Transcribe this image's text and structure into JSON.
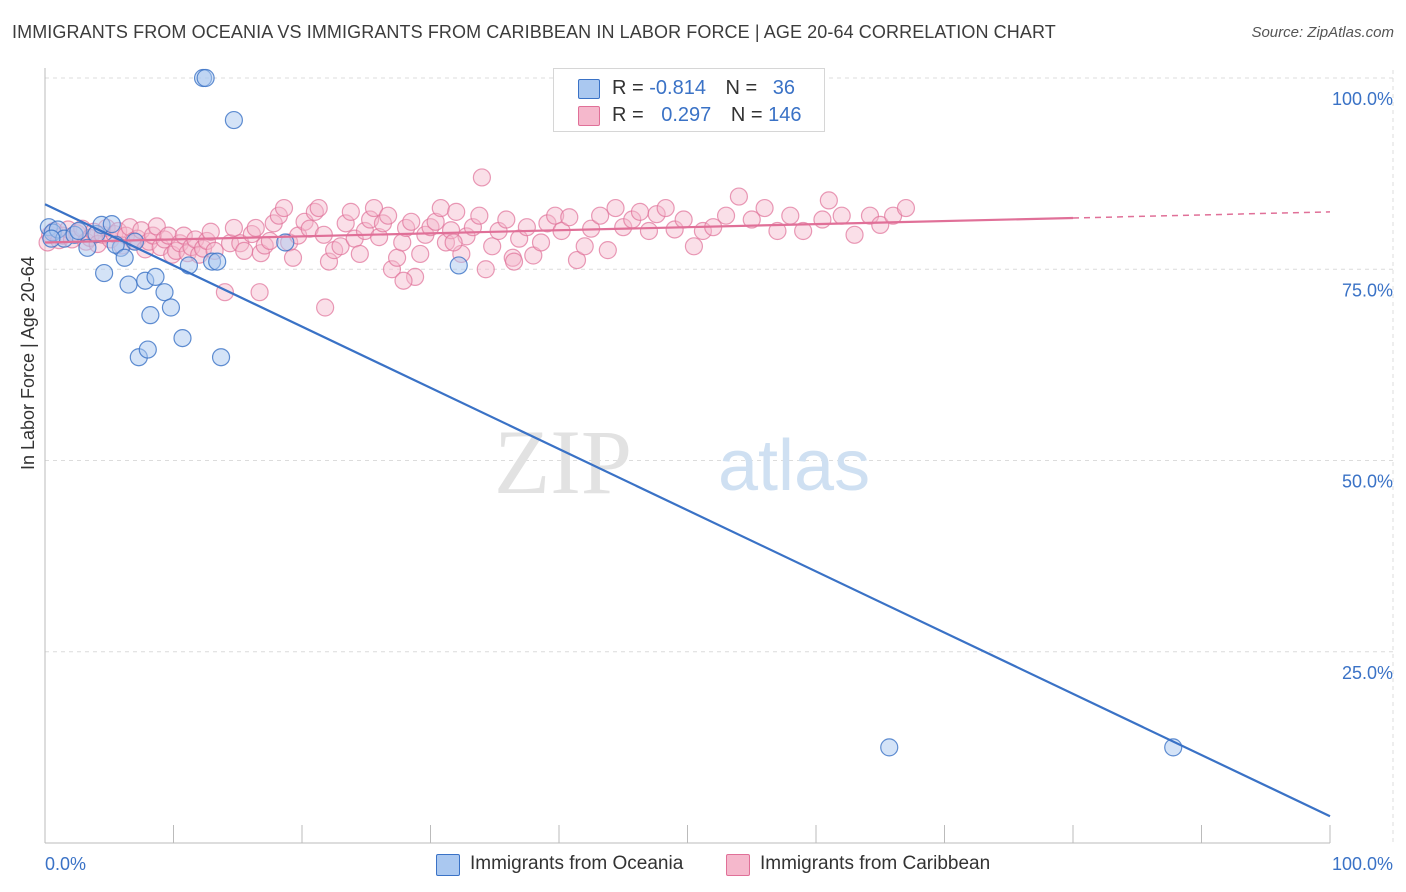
{
  "title": "IMMIGRANTS FROM OCEANIA VS IMMIGRANTS FROM CARIBBEAN IN LABOR FORCE | AGE 20-64 CORRELATION CHART",
  "source": "Source: ZipAtlas.com",
  "watermark": {
    "zip": "ZIP",
    "atlas": "atlas"
  },
  "colors": {
    "blue": "#3a72c6",
    "blue_fill": "#aac8f0",
    "pink": "#e07098",
    "pink_fill": "#f5b8cc",
    "grid": "#dcdcdc",
    "tick_label": "#3a72c6"
  },
  "legend": {
    "rows": [
      {
        "r_label": "R =",
        "r_value": "-0.814",
        "n_label": "N =",
        "n_value": "36"
      },
      {
        "r_label": "R =",
        "r_value": "0.297",
        "n_label": "N =",
        "n_value": "146"
      }
    ]
  },
  "bottom_legend": {
    "oceania": "Immigrants from Oceania",
    "caribbean": "Immigrants from Caribbean"
  },
  "chart_data": {
    "type": "scatter",
    "title": "IMMIGRANTS FROM OCEANIA VS IMMIGRANTS FROM CARIBBEAN IN LABOR FORCE | AGE 20-64 CORRELATION CHART",
    "xlabel": "",
    "ylabel": "In Labor Force | Age 20-64",
    "xlim": [
      0,
      100
    ],
    "ylim": [
      0,
      100
    ],
    "x_tick_labels": [
      "0.0%",
      "100.0%"
    ],
    "y_tick_labels": [
      "100.0%",
      "75.0%",
      "50.0%",
      "25.0%"
    ],
    "y_ticks": [
      100,
      75,
      50,
      25
    ],
    "grid": true,
    "series": [
      {
        "name": "Immigrants from Oceania",
        "color": "#3a72c6",
        "r": -0.814,
        "n": 36,
        "trend": {
          "x": [
            0,
            100
          ],
          "y": [
            83.5,
            3.5
          ]
        },
        "points": [
          [
            0.3,
            80.5
          ],
          [
            0.6,
            79.8
          ],
          [
            1.0,
            80.2
          ],
          [
            1.5,
            79.0
          ],
          [
            2.3,
            79.5
          ],
          [
            2.6,
            80.0
          ],
          [
            3.3,
            77.8
          ],
          [
            4.0,
            79.6
          ],
          [
            4.4,
            80.8
          ],
          [
            5.2,
            80.9
          ],
          [
            5.9,
            77.8
          ],
          [
            4.6,
            74.5
          ],
          [
            5.5,
            78.2
          ],
          [
            6.2,
            76.5
          ],
          [
            6.5,
            73.0
          ],
          [
            7.0,
            78.6
          ],
          [
            7.3,
            63.5
          ],
          [
            7.8,
            73.5
          ],
          [
            8.0,
            64.5
          ],
          [
            8.2,
            69.0
          ],
          [
            8.6,
            74.0
          ],
          [
            9.3,
            72.0
          ],
          [
            9.8,
            70.0
          ],
          [
            10.7,
            66.0
          ],
          [
            11.2,
            75.5
          ],
          [
            12.3,
            100.0
          ],
          [
            12.5,
            100.0
          ],
          [
            13.0,
            76.0
          ],
          [
            13.4,
            76.0
          ],
          [
            13.7,
            63.5
          ],
          [
            14.7,
            94.5
          ],
          [
            18.7,
            78.5
          ],
          [
            32.2,
            75.5
          ],
          [
            65.7,
            12.5
          ],
          [
            87.8,
            12.5
          ],
          [
            0.5,
            79.0
          ]
        ]
      },
      {
        "name": "Immigrants from Caribbean",
        "color": "#e07098",
        "r": 0.297,
        "n": 146,
        "trend": {
          "x": [
            0,
            80
          ],
          "y": [
            78.5,
            81.7
          ],
          "dashed_to": [
            100,
            82.5
          ]
        },
        "points": [
          [
            0.2,
            78.5
          ],
          [
            0.4,
            79.5
          ],
          [
            0.7,
            80.0
          ],
          [
            1.1,
            78.8
          ],
          [
            1.4,
            79.4
          ],
          [
            1.8,
            80.2
          ],
          [
            2.1,
            78.9
          ],
          [
            2.5,
            79.7
          ],
          [
            2.9,
            80.3
          ],
          [
            3.2,
            78.6
          ],
          [
            3.5,
            79.1
          ],
          [
            3.8,
            79.9
          ],
          [
            4.1,
            78.3
          ],
          [
            4.5,
            79.5
          ],
          [
            4.8,
            80.4
          ],
          [
            5.1,
            78.9
          ],
          [
            5.4,
            79.6
          ],
          [
            5.7,
            80.0
          ],
          [
            6.0,
            78.1
          ],
          [
            6.3,
            79.4
          ],
          [
            6.6,
            80.5
          ],
          [
            6.9,
            78.7
          ],
          [
            7.2,
            79.0
          ],
          [
            7.5,
            80.1
          ],
          [
            7.8,
            77.6
          ],
          [
            8.1,
            78.6
          ],
          [
            8.4,
            79.4
          ],
          [
            8.7,
            80.6
          ],
          [
            9.0,
            77.9
          ],
          [
            9.3,
            78.9
          ],
          [
            9.6,
            79.4
          ],
          [
            9.9,
            76.9
          ],
          [
            10.2,
            77.4
          ],
          [
            10.5,
            78.4
          ],
          [
            10.8,
            79.4
          ],
          [
            11.1,
            77.1
          ],
          [
            11.4,
            77.9
          ],
          [
            11.7,
            78.9
          ],
          [
            12.0,
            76.9
          ],
          [
            12.3,
            77.7
          ],
          [
            12.6,
            78.7
          ],
          [
            12.9,
            79.9
          ],
          [
            13.2,
            77.4
          ],
          [
            14.0,
            72.0
          ],
          [
            14.4,
            78.4
          ],
          [
            14.7,
            80.4
          ],
          [
            15.2,
            78.4
          ],
          [
            15.5,
            77.4
          ],
          [
            16.1,
            79.6
          ],
          [
            16.4,
            80.4
          ],
          [
            16.8,
            77.1
          ],
          [
            17.1,
            78.1
          ],
          [
            17.5,
            78.7
          ],
          [
            17.8,
            81.0
          ],
          [
            18.2,
            82.0
          ],
          [
            18.6,
            83.0
          ],
          [
            19.0,
            78.5
          ],
          [
            19.3,
            76.5
          ],
          [
            19.7,
            79.4
          ],
          [
            20.2,
            81.2
          ],
          [
            20.6,
            80.3
          ],
          [
            21.0,
            82.5
          ],
          [
            21.3,
            83.0
          ],
          [
            21.7,
            79.5
          ],
          [
            22.1,
            76.0
          ],
          [
            22.5,
            77.5
          ],
          [
            23.0,
            78.0
          ],
          [
            23.4,
            81.0
          ],
          [
            23.8,
            82.5
          ],
          [
            24.1,
            79.0
          ],
          [
            24.5,
            77.0
          ],
          [
            24.9,
            80.0
          ],
          [
            25.3,
            81.5
          ],
          [
            25.6,
            83.0
          ],
          [
            26.0,
            79.2
          ],
          [
            26.3,
            81.0
          ],
          [
            26.7,
            82.0
          ],
          [
            27.0,
            75.0
          ],
          [
            27.4,
            76.5
          ],
          [
            27.8,
            78.5
          ],
          [
            28.1,
            80.4
          ],
          [
            28.5,
            81.2
          ],
          [
            28.8,
            74.0
          ],
          [
            29.2,
            77.0
          ],
          [
            29.6,
            79.5
          ],
          [
            30.0,
            80.5
          ],
          [
            30.4,
            81.2
          ],
          [
            30.8,
            83.0
          ],
          [
            31.2,
            78.5
          ],
          [
            31.6,
            80.1
          ],
          [
            32.0,
            82.5
          ],
          [
            32.4,
            77.0
          ],
          [
            32.8,
            79.3
          ],
          [
            33.3,
            80.5
          ],
          [
            33.8,
            82.0
          ],
          [
            34.3,
            75.0
          ],
          [
            34.8,
            78.0
          ],
          [
            35.3,
            80.0
          ],
          [
            35.9,
            81.5
          ],
          [
            36.4,
            76.5
          ],
          [
            36.9,
            79.0
          ],
          [
            37.5,
            80.5
          ],
          [
            38.0,
            76.8
          ],
          [
            38.6,
            78.5
          ],
          [
            39.1,
            81.0
          ],
          [
            39.7,
            82.0
          ],
          [
            40.2,
            80.0
          ],
          [
            40.8,
            81.8
          ],
          [
            41.4,
            76.2
          ],
          [
            42.0,
            78.0
          ],
          [
            42.5,
            80.3
          ],
          [
            43.2,
            82.0
          ],
          [
            43.8,
            77.5
          ],
          [
            44.4,
            83.0
          ],
          [
            45.0,
            80.5
          ],
          [
            45.7,
            81.5
          ],
          [
            46.3,
            82.5
          ],
          [
            47.0,
            80.0
          ],
          [
            47.6,
            82.2
          ],
          [
            48.3,
            83.0
          ],
          [
            49.0,
            80.2
          ],
          [
            49.7,
            81.5
          ],
          [
            50.5,
            78.0
          ],
          [
            51.2,
            80.0
          ],
          [
            52.0,
            80.5
          ],
          [
            53.0,
            82.0
          ],
          [
            54.0,
            84.5
          ],
          [
            55.0,
            81.5
          ],
          [
            56.0,
            83.0
          ],
          [
            57.0,
            80.0
          ],
          [
            58.0,
            82.0
          ],
          [
            59.0,
            80.0
          ],
          [
            60.5,
            81.5
          ],
          [
            62.0,
            82.0
          ],
          [
            63.0,
            79.5
          ],
          [
            64.2,
            82.0
          ],
          [
            65.0,
            80.8
          ],
          [
            66.0,
            82.0
          ],
          [
            67.0,
            83.0
          ],
          [
            34.0,
            87.0
          ],
          [
            31.8,
            78.5
          ],
          [
            61.0,
            84.0
          ],
          [
            16.7,
            72.0
          ],
          [
            21.8,
            70.0
          ],
          [
            27.9,
            73.5
          ],
          [
            36.5,
            76.0
          ]
        ]
      }
    ]
  },
  "ylabel_text": "In Labor Force | Age 20-64"
}
